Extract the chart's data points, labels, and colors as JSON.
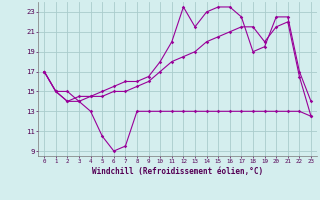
{
  "xlabel": "Windchill (Refroidissement éolien,°C)",
  "xlim": [
    -0.5,
    23.5
  ],
  "ylim": [
    8.5,
    24
  ],
  "x_ticks": [
    0,
    1,
    2,
    3,
    4,
    5,
    6,
    7,
    8,
    9,
    10,
    11,
    12,
    13,
    14,
    15,
    16,
    17,
    18,
    19,
    20,
    21,
    22,
    23
  ],
  "y_ticks": [
    9,
    11,
    13,
    15,
    17,
    19,
    21,
    23
  ],
  "background_color": "#d4eeee",
  "grid_color": "#aacccc",
  "line_color": "#990099",
  "line1_x": [
    0,
    1,
    2,
    3,
    4,
    5,
    6,
    7,
    8,
    9,
    10,
    11,
    12,
    13,
    14,
    15,
    16,
    17,
    18,
    19,
    20,
    21,
    22,
    23
  ],
  "line1_y": [
    17,
    15,
    15,
    14,
    13,
    10.5,
    9,
    9.5,
    13,
    13,
    13,
    13,
    13,
    13,
    13,
    13,
    13,
    13,
    13,
    13,
    13,
    13,
    13,
    12.5
  ],
  "line2_x": [
    0,
    1,
    2,
    3,
    4,
    5,
    6,
    7,
    8,
    9,
    10,
    11,
    12,
    13,
    14,
    15,
    16,
    17,
    18,
    19,
    20,
    21,
    22,
    23
  ],
  "line2_y": [
    17,
    15,
    14,
    14.5,
    14.5,
    15,
    15.5,
    16,
    16,
    16.5,
    18,
    20,
    23.5,
    21.5,
    23,
    23.5,
    23.5,
    22.5,
    19,
    19.5,
    22.5,
    22.5,
    17,
    14
  ],
  "line3_x": [
    0,
    1,
    2,
    3,
    4,
    5,
    6,
    7,
    8,
    9,
    10,
    11,
    12,
    13,
    14,
    15,
    16,
    17,
    18,
    19,
    20,
    21,
    22,
    23
  ],
  "line3_y": [
    17,
    15,
    14,
    14,
    14.5,
    14.5,
    15,
    15,
    15.5,
    16,
    17,
    18,
    18.5,
    19,
    20,
    20.5,
    21,
    21.5,
    21.5,
    20,
    21.5,
    22,
    16.5,
    12.5
  ]
}
